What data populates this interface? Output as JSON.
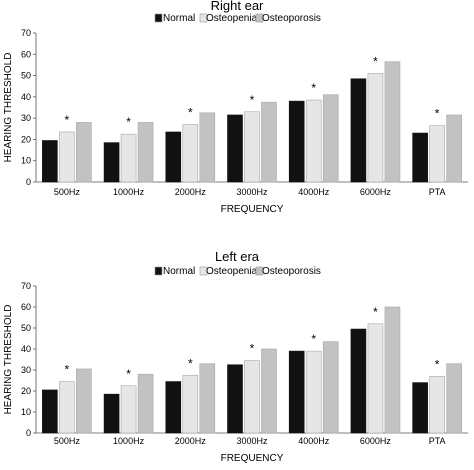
{
  "chart_data": [
    {
      "type": "bar",
      "title": "Right ear",
      "xlabel": "FREQUENCY",
      "ylabel": "HEARING THRESHOLD",
      "ylim": [
        0,
        70
      ],
      "yticks": [
        0,
        10,
        20,
        30,
        40,
        50,
        60,
        70
      ],
      "categories": [
        "500Hz",
        "1000Hz",
        "2000Hz",
        "3000Hz",
        "4000Hz",
        "6000Hz",
        "PTA"
      ],
      "series": [
        {
          "name": "Normal",
          "color": "#111111",
          "values": [
            19.5,
            18.5,
            23.5,
            31.5,
            38,
            48.5,
            23
          ]
        },
        {
          "name": "Osteopenia",
          "color": "#e6e6e6",
          "values": [
            23.5,
            22.5,
            27,
            33,
            38.5,
            51,
            26.5
          ]
        },
        {
          "name": "Osteoporosis",
          "color": "#c2c2c2",
          "values": [
            28,
            28,
            32.5,
            37.5,
            41,
            56.5,
            31.5
          ]
        }
      ],
      "annotations": {
        "symbol": "*",
        "categories": [
          "500Hz",
          "1000Hz",
          "2000Hz",
          "3000Hz",
          "4000Hz",
          "6000Hz",
          "PTA"
        ]
      },
      "legend": "top",
      "grid": false
    },
    {
      "type": "bar",
      "title": "Left era",
      "xlabel": "FREQUENCY",
      "ylabel": "HEARING THRESHOLD",
      "ylim": [
        0,
        70
      ],
      "yticks": [
        0,
        10,
        20,
        30,
        40,
        50,
        60,
        70
      ],
      "categories": [
        "500Hz",
        "1000Hz",
        "2000Hz",
        "3000Hz",
        "4000Hz",
        "6000Hz",
        "PTA"
      ],
      "series": [
        {
          "name": "Normal",
          "color": "#111111",
          "values": [
            20.5,
            18.5,
            24.5,
            32.5,
            39,
            49.5,
            24
          ]
        },
        {
          "name": "Osteopenia",
          "color": "#e6e6e6",
          "values": [
            24.5,
            22.5,
            27.5,
            34.5,
            39,
            52,
            27
          ]
        },
        {
          "name": "Osteoporosis",
          "color": "#c2c2c2",
          "values": [
            30.5,
            28,
            33,
            40,
            43.5,
            60,
            33
          ]
        }
      ],
      "annotations": {
        "symbol": "*",
        "categories": [
          "500Hz",
          "1000Hz",
          "2000Hz",
          "3000Hz",
          "4000Hz",
          "6000Hz",
          "PTA"
        ]
      },
      "legend": "top",
      "grid": false
    }
  ]
}
